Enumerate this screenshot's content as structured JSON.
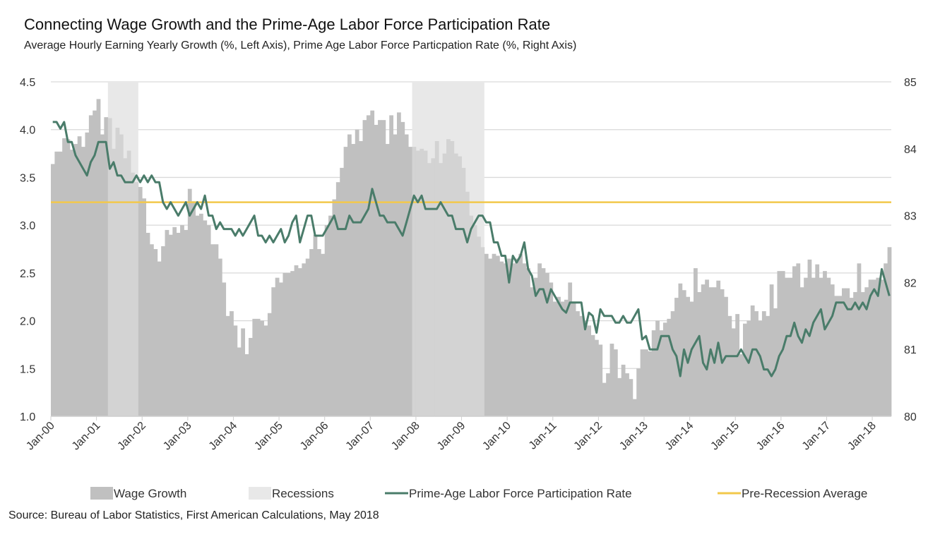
{
  "header": {
    "title": "Connecting Wage Growth and the Prime-Age Labor Force Participation Rate",
    "subtitle": "Average Hourly Earning Yearly Growth (%, Left Axis), Prime Age Labor Force Particpation Rate (%, Right Axis)"
  },
  "source": "Source: Bureau of Labor Statistics, First American Calculations, May 2018",
  "chart_data": {
    "type": "bar+line",
    "x_start": "Jan-00",
    "x_end": "May-18",
    "frequency": "monthly",
    "x_tick_labels": [
      "Jan-00",
      "Jan-01",
      "Jan-02",
      "Jan-03",
      "Jan-04",
      "Jan-05",
      "Jan-06",
      "Jan-07",
      "Jan-08",
      "Jan-09",
      "Jan-10",
      "Jan-11",
      "Jan-12",
      "Jan-13",
      "Jan-14",
      "Jan-15",
      "Jan-16",
      "Jan-17",
      "Jan-18"
    ],
    "left_axis": {
      "ticks": [
        "1.0",
        "1.5",
        "2.0",
        "2.5",
        "3.0",
        "3.5",
        "4.0",
        "4.5"
      ],
      "range": [
        1.0,
        4.5
      ]
    },
    "right_axis": {
      "ticks": [
        "80",
        "81",
        "82",
        "83",
        "84",
        "85"
      ],
      "range": [
        80,
        85
      ]
    },
    "grid": true,
    "legend_position": "bottom",
    "legend": [
      "Wage Growth",
      "Recessions",
      "Prime-Age Labor Force Participation Rate",
      "Pre-Recession Average"
    ],
    "colors": {
      "wage": "#c0c0c0",
      "wage_in_recession": "#d3d3d3",
      "recession": "#e8e8e8",
      "lfpr": "#4a7c6a",
      "average": "#f2c84b"
    },
    "recessions": [
      [
        "Apr-01",
        "Nov-01"
      ],
      [
        "Dec-07",
        "Jun-09"
      ]
    ],
    "pre_recession_average": 3.24,
    "series": [
      {
        "name": "Wage Growth",
        "axis": "left",
        "type": "bar",
        "values": [
          3.64,
          3.77,
          3.77,
          3.91,
          3.9,
          3.79,
          3.85,
          3.93,
          3.82,
          3.97,
          4.15,
          4.2,
          4.32,
          3.95,
          4.13,
          4.12,
          3.8,
          4.02,
          3.95,
          3.7,
          3.78,
          3.55,
          3.45,
          3.4,
          3.28,
          2.92,
          2.8,
          2.75,
          2.62,
          2.78,
          2.95,
          2.9,
          2.98,
          2.92,
          3.0,
          2.95,
          3.38,
          3.25,
          3.1,
          3.12,
          3.05,
          3.0,
          2.8,
          2.8,
          2.65,
          2.4,
          2.05,
          2.1,
          1.95,
          1.72,
          1.92,
          1.65,
          1.82,
          2.02,
          2.02,
          2.0,
          1.95,
          2.08,
          2.35,
          2.45,
          2.4,
          2.5,
          2.5,
          2.52,
          2.58,
          2.55,
          2.6,
          2.65,
          2.75,
          2.9,
          2.75,
          2.7,
          3.0,
          3.1,
          3.27,
          3.45,
          3.6,
          3.82,
          3.95,
          3.85,
          4.0,
          3.88,
          4.1,
          4.15,
          4.2,
          4.05,
          4.1,
          4.1,
          3.85,
          4.15,
          3.95,
          4.18,
          4.08,
          3.95,
          3.82,
          3.82,
          3.78,
          3.8,
          3.78,
          3.65,
          3.7,
          3.88,
          3.65,
          3.75,
          3.9,
          3.88,
          3.75,
          3.72,
          3.6,
          3.35,
          3.1,
          3.0,
          2.88,
          2.77,
          2.7,
          2.65,
          2.7,
          2.68,
          2.62,
          2.6,
          2.65,
          2.6,
          2.65,
          2.7,
          2.6,
          2.55,
          2.35,
          2.45,
          2.6,
          2.55,
          2.5,
          2.4,
          2.2,
          2.25,
          2.2,
          2.22,
          2.4,
          2.2,
          2.1,
          2.05,
          2.0,
          1.95,
          1.85,
          1.8,
          1.75,
          1.35,
          1.45,
          1.76,
          1.7,
          1.4,
          1.54,
          1.45,
          1.39,
          1.18,
          1.5,
          1.7,
          1.7,
          1.68,
          1.9,
          2.0,
          1.9,
          1.98,
          2.02,
          2.1,
          2.24,
          2.39,
          2.32,
          2.25,
          2.2,
          2.55,
          2.3,
          2.38,
          2.43,
          2.35,
          2.35,
          2.42,
          2.33,
          2.25,
          2.05,
          1.92,
          2.07,
          1.65,
          1.97,
          2.0,
          2.16,
          2.1,
          2.0,
          2.1,
          2.05,
          2.38,
          2.13,
          2.52,
          2.52,
          2.45,
          2.45,
          2.57,
          2.6,
          2.35,
          2.45,
          2.64,
          2.45,
          2.59,
          2.45,
          2.52,
          2.45,
          2.38,
          2.26,
          2.26,
          2.34,
          2.34,
          2.24,
          2.3,
          2.6,
          2.3,
          2.35,
          2.43,
          2.43,
          2.45,
          2.43,
          2.6,
          2.77
        ]
      },
      {
        "name": "Prime-Age Labor Force Participation Rate",
        "axis": "right",
        "type": "line",
        "values": [
          84.4,
          84.4,
          84.3,
          84.4,
          84.1,
          84.1,
          83.9,
          83.8,
          83.7,
          83.6,
          83.8,
          83.9,
          84.1,
          84.1,
          84.1,
          83.7,
          83.8,
          83.6,
          83.6,
          83.5,
          83.5,
          83.5,
          83.6,
          83.5,
          83.6,
          83.5,
          83.6,
          83.5,
          83.5,
          83.2,
          83.1,
          83.2,
          83.1,
          83.0,
          83.1,
          83.2,
          83.0,
          83.1,
          83.2,
          83.1,
          83.3,
          83.0,
          83.0,
          82.8,
          82.9,
          82.8,
          82.8,
          82.8,
          82.7,
          82.8,
          82.7,
          82.8,
          82.9,
          83.0,
          82.7,
          82.7,
          82.6,
          82.7,
          82.6,
          82.7,
          82.8,
          82.6,
          82.7,
          82.9,
          83.0,
          82.6,
          82.8,
          83.0,
          83.0,
          82.7,
          82.7,
          82.7,
          82.8,
          82.9,
          83.0,
          82.8,
          82.8,
          82.8,
          83.0,
          82.9,
          82.9,
          82.9,
          83.0,
          83.1,
          83.4,
          83.2,
          83.0,
          83.0,
          82.9,
          82.9,
          82.9,
          82.8,
          82.7,
          82.9,
          83.1,
          83.3,
          83.2,
          83.3,
          83.1,
          83.1,
          83.1,
          83.1,
          83.2,
          83.1,
          83.0,
          83.0,
          82.8,
          82.8,
          82.8,
          82.6,
          82.8,
          82.9,
          83.0,
          83.0,
          82.9,
          82.9,
          82.6,
          82.6,
          82.4,
          82.4,
          82.0,
          82.4,
          82.3,
          82.4,
          82.6,
          82.2,
          82.1,
          81.8,
          81.9,
          81.9,
          81.7,
          81.9,
          81.8,
          81.7,
          81.6,
          81.55,
          81.7,
          81.7,
          81.7,
          81.7,
          81.3,
          81.55,
          81.5,
          81.25,
          81.6,
          81.5,
          81.5,
          81.5,
          81.4,
          81.4,
          81.5,
          81.4,
          81.4,
          81.5,
          81.6,
          81.15,
          81.2,
          81.0,
          81.0,
          81.0,
          81.2,
          81.2,
          81.2,
          81.0,
          80.9,
          80.6,
          81.0,
          80.8,
          81.0,
          81.1,
          81.2,
          80.8,
          80.7,
          81.0,
          80.8,
          81.1,
          80.8,
          80.9,
          80.9,
          80.9,
          80.9,
          81.0,
          80.9,
          80.8,
          81.0,
          81.0,
          80.9,
          80.7,
          80.7,
          80.6,
          80.7,
          80.9,
          81.0,
          81.2,
          81.2,
          81.4,
          81.2,
          81.1,
          81.3,
          81.2,
          81.4,
          81.5,
          81.6,
          81.3,
          81.4,
          81.5,
          81.7,
          81.7,
          81.7,
          81.6,
          81.6,
          81.7,
          81.6,
          81.7,
          81.6,
          81.8,
          81.9,
          81.8,
          82.2,
          82.0,
          81.8
        ]
      }
    ]
  }
}
